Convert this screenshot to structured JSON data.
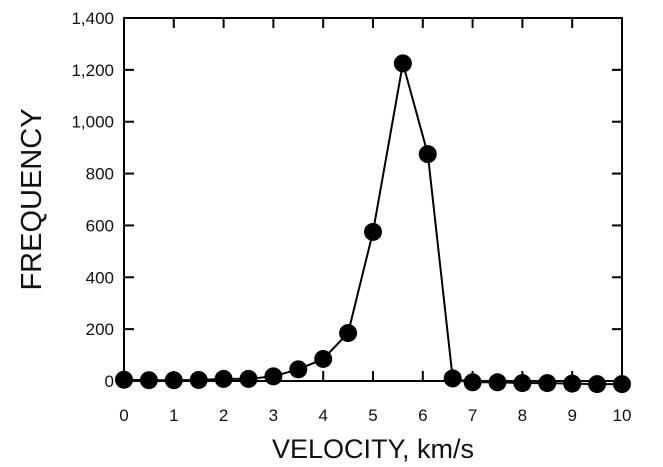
{
  "chart_data": {
    "type": "line",
    "xlabel": "VELOCITY, km/s",
    "ylabel": "FREQUENCY",
    "xlim": [
      0,
      10
    ],
    "ylim": [
      0,
      1400
    ],
    "xticks": [
      0,
      1,
      2,
      3,
      4,
      5,
      6,
      7,
      8,
      9,
      10
    ],
    "yticks": [
      0,
      200,
      400,
      600,
      800,
      1000,
      1200,
      1400
    ],
    "xtick_labels": [
      "0",
      "1",
      "2",
      "3",
      "4",
      "5",
      "6",
      "7",
      "8",
      "9",
      "10"
    ],
    "ytick_labels": [
      "0",
      "200",
      "400",
      "600",
      "800",
      "1,000",
      "1,200",
      "1,400"
    ],
    "grid": false,
    "marker": "filled-circle",
    "series": [
      {
        "x": [
          0,
          0.5,
          1,
          1.5,
          2,
          2.5,
          3,
          3.5,
          4,
          4.5,
          5,
          5.6,
          6.1,
          6.6,
          7,
          7.5,
          8,
          8.5,
          9,
          9.5,
          10
        ],
        "y": [
          5,
          3,
          3,
          4,
          8,
          8,
          18,
          45,
          85,
          185,
          575,
          1225,
          875,
          10,
          -5,
          -5,
          -8,
          -8,
          -10,
          -12,
          -12
        ]
      }
    ]
  }
}
